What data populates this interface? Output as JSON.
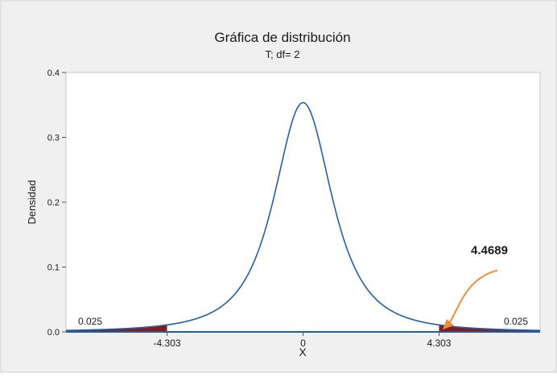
{
  "chart_data": {
    "type": "area",
    "title": "Gráfica de distribución",
    "subtitle": "T; df= 2",
    "xlabel": "X",
    "ylabel": "Densidad",
    "distribution": "t",
    "df": 2,
    "xlim": [
      -7.5,
      7.5
    ],
    "ylim": [
      0,
      0.4
    ],
    "ytick_values": [
      0.0,
      0.1,
      0.2,
      0.3,
      0.4
    ],
    "ytick_labels": [
      "0.0",
      "0.1",
      "0.2",
      "0.3",
      "0.4"
    ],
    "xtick_values": [
      -4.303,
      0,
      4.303
    ],
    "xtick_labels": [
      "-4.303",
      "0",
      "4.303"
    ],
    "shaded_tails": [
      {
        "from": -7.5,
        "to": -4.303,
        "area_label": "0.025"
      },
      {
        "from": 4.303,
        "to": 7.5,
        "area_label": "0.025"
      }
    ],
    "annotation": {
      "text": "4.4689",
      "x": 4.4689,
      "y": 0.0
    },
    "grid": false,
    "colors": {
      "curve": "#1f5fa8",
      "tail_fill": "#8b1a1a",
      "annotation_arrow": "#f28c38",
      "background": "#f0f0f0",
      "plot_background": "#ffffff"
    }
  }
}
